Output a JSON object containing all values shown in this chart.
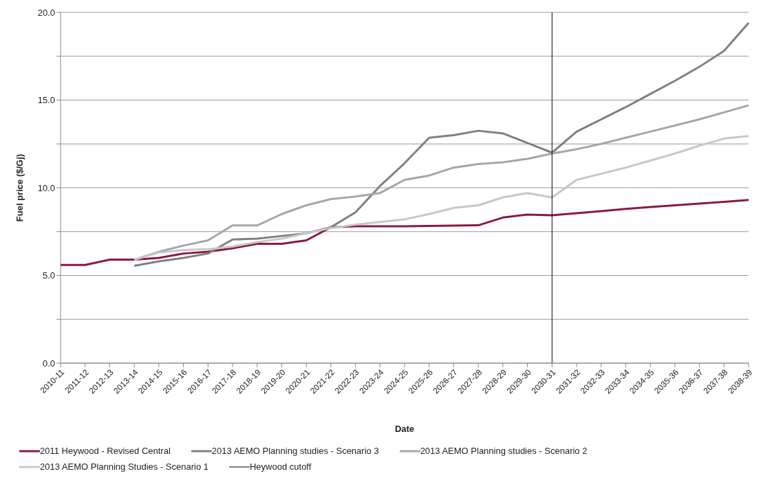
{
  "chart_data": {
    "type": "line",
    "xlabel": "Date",
    "ylabel": "Fuel price ($/Gj)",
    "categories": [
      "2010-11",
      "2011-12",
      "2012-13",
      "2013-14",
      "2014-15",
      "2015-16",
      "2016-17",
      "2017-18",
      "2018-19",
      "2019-20",
      "2020-21",
      "2021-22",
      "2022-23",
      "2023-24",
      "2024-25",
      "2025-26",
      "2026-27",
      "2027-28",
      "2028-29",
      "2029-30",
      "2030-31",
      "2031-32",
      "2032-33",
      "2033-34",
      "2034-35",
      "2035-36",
      "2036-37",
      "2037-38",
      "2038-39"
    ],
    "series": [
      {
        "name": "2011 Heywood - Revised Central",
        "color": "#8b1a3a",
        "values": [
          5.6,
          5.6,
          5.9,
          5.9,
          6.0,
          6.25,
          6.35,
          6.55,
          6.8,
          6.8,
          7.0,
          7.75,
          7.8,
          7.8,
          7.8,
          7.82,
          7.84,
          7.86,
          8.3,
          8.47,
          8.43,
          8.55,
          8.67,
          8.79,
          8.9,
          9.0,
          9.1,
          9.2,
          9.3
        ]
      },
      {
        "name": "2013 AEMO Planning studies - Scenario 3",
        "color": "#808080",
        "values": [
          null,
          null,
          null,
          5.55,
          5.8,
          6.0,
          6.25,
          7.05,
          7.1,
          7.25,
          7.4,
          7.75,
          8.6,
          10.1,
          11.4,
          12.85,
          13.0,
          13.25,
          13.1,
          12.55,
          12.0,
          13.2,
          13.9,
          14.6,
          15.35,
          16.1,
          16.9,
          17.8,
          19.4
        ]
      },
      {
        "name": "2013 AEMO Planning studies - Scenario 2",
        "color": "#a6a6a6",
        "values": [
          null,
          null,
          null,
          5.9,
          6.35,
          6.7,
          7.0,
          7.85,
          7.85,
          8.5,
          9.0,
          9.35,
          9.5,
          9.7,
          10.45,
          10.7,
          11.15,
          11.35,
          11.45,
          11.65,
          11.95,
          12.2,
          12.5,
          12.85,
          13.2,
          13.55,
          13.9,
          14.3,
          14.7
        ]
      },
      {
        "name": "2013 AEMO Planning Studies - Scenario 1",
        "color": "#c8c8c8",
        "values": [
          null,
          null,
          null,
          5.9,
          6.3,
          6.45,
          6.5,
          6.65,
          6.9,
          7.1,
          7.4,
          7.7,
          7.9,
          8.05,
          8.2,
          8.5,
          8.85,
          9.0,
          9.45,
          9.7,
          9.45,
          10.45,
          10.8,
          11.15,
          11.55,
          11.95,
          12.4,
          12.8,
          12.95
        ]
      }
    ],
    "ref_lines": [
      {
        "axis": "x",
        "value": "2030-31",
        "label": "Heywood cutoff",
        "color": "#000000"
      }
    ],
    "ylim": [
      0,
      20
    ],
    "yticks": [
      {
        "value": 0,
        "label": "0.0"
      },
      {
        "value": 2.5,
        "label": null
      },
      {
        "value": 5,
        "label": "5.0"
      },
      {
        "value": 7.5,
        "label": null
      },
      {
        "value": 10,
        "label": "10.0"
      },
      {
        "value": 12.5,
        "label": null
      },
      {
        "value": 15,
        "label": "15.0"
      },
      {
        "value": 17.5,
        "label": null
      },
      {
        "value": 20,
        "label": "20.0"
      }
    ],
    "grid": "y",
    "legend": "bottom",
    "marker": "none",
    "line_style": "solid"
  }
}
